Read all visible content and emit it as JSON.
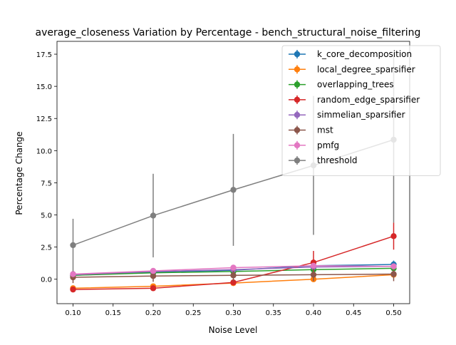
{
  "chart_data": {
    "type": "line",
    "title": "average_closeness Variation by Percentage - bench_structural_noise_filtering",
    "xlabel": "Noise Level",
    "ylabel": "Percentage Change",
    "x": [
      0.1,
      0.2,
      0.3,
      0.4,
      0.5
    ],
    "xlim": [
      0.08,
      0.52
    ],
    "ylim": [
      -1.9,
      18.5
    ],
    "xticks": [
      "0.10",
      "0.15",
      "0.20",
      "0.25",
      "0.30",
      "0.35",
      "0.40",
      "0.45",
      "0.50"
    ],
    "yticks": [
      "0.0",
      "2.5",
      "5.0",
      "7.5",
      "10.0",
      "12.5",
      "15.0",
      "17.5"
    ],
    "grid": false,
    "legend_position": "top-right",
    "error_bars": true,
    "series": [
      {
        "name": "k_core_decomposition",
        "color": "#1f77b4",
        "values": [
          0.3,
          0.55,
          0.7,
          1.05,
          1.15
        ],
        "errors": [
          0.15,
          0.15,
          0.2,
          0.25,
          0.3
        ]
      },
      {
        "name": "local_degree_sparsifier",
        "color": "#ff7f0e",
        "values": [
          -0.7,
          -0.55,
          -0.3,
          0.0,
          0.35
        ],
        "errors": [
          0.1,
          0.15,
          0.15,
          0.15,
          0.2
        ]
      },
      {
        "name": "overlapping_trees",
        "color": "#2ca02c",
        "values": [
          0.3,
          0.5,
          0.6,
          0.75,
          0.85
        ],
        "errors": [
          0.1,
          0.1,
          0.1,
          0.1,
          0.1
        ]
      },
      {
        "name": "random_edge_sparsifier",
        "color": "#d62728",
        "values": [
          -0.8,
          -0.7,
          -0.25,
          1.3,
          3.35
        ],
        "errors": [
          0.1,
          0.15,
          0.2,
          0.9,
          1.05
        ]
      },
      {
        "name": "simmelian_sparsifier",
        "color": "#9467bd",
        "values": [
          0.35,
          0.6,
          0.75,
          0.95,
          1.0
        ],
        "errors": [
          0.1,
          0.1,
          0.15,
          0.15,
          0.15
        ]
      },
      {
        "name": "mst",
        "color": "#8c564b",
        "values": [
          0.15,
          0.25,
          0.3,
          0.35,
          0.4
        ],
        "errors": [
          0.45,
          0.45,
          0.45,
          0.5,
          0.55
        ]
      },
      {
        "name": "pmfg",
        "color": "#e377c2",
        "values": [
          0.4,
          0.65,
          0.9,
          1.05,
          1.0
        ],
        "errors": [
          0.1,
          0.1,
          0.15,
          0.15,
          0.15
        ]
      },
      {
        "name": "threshold",
        "color": "#7f7f7f",
        "values": [
          2.65,
          4.95,
          6.95,
          8.85,
          10.85
        ],
        "errors": [
          2.05,
          3.25,
          4.35,
          5.4,
          6.45
        ]
      }
    ]
  }
}
